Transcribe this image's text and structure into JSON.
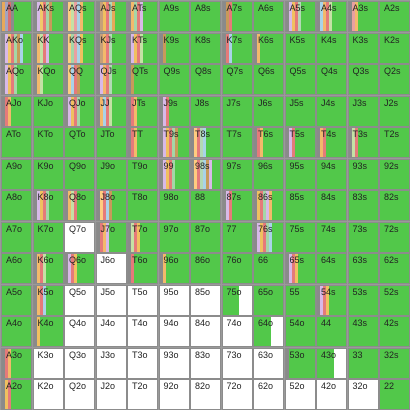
{
  "colors": {
    "raise": "#52c84a",
    "fold": "#ffffff",
    "text": "#222222",
    "border": "#8c8c8c"
  },
  "rows": [
    [
      {
        "hand": "AA",
        "green": 0.72,
        "stripes": [
          "#e7a95a",
          "#a3a3c0",
          "#d76f6f",
          "#8c8c8c"
        ]
      },
      {
        "hand": "AKs",
        "green": 0.6,
        "stripes": [
          "#8a8a8a",
          "#d8b9e8",
          "#f3c86b",
          "#e57a7a",
          "#a5d6a7",
          "#c79a5b"
        ]
      },
      {
        "hand": "AQs",
        "green": 0.62,
        "stripes": [
          "#8a8a8a",
          "#ffcc80",
          "#c5e1a5",
          "#e9a0a0",
          "#a9d3e8",
          "#f3b96b"
        ]
      },
      {
        "hand": "AJs",
        "green": 0.55,
        "stripes": [
          "#8a8a8a",
          "#c6a07a",
          "#f0c060",
          "#e57a7a",
          "#b3d9b5",
          "#e6a85a"
        ]
      },
      {
        "hand": "ATs",
        "green": 0.4,
        "stripes": [
          "#8a8a8a",
          "#f3b96b",
          "#a5d6a7",
          "#e57a7a",
          "#d8b9e8"
        ]
      },
      {
        "hand": "A9s",
        "green": 1,
        "stripes": []
      },
      {
        "hand": "A8s",
        "green": 1,
        "stripes": []
      },
      {
        "hand": "A7s",
        "green": 0.75,
        "stripes": [
          "#8a8a8a",
          "#c79a5b",
          "#e57a7a"
        ]
      },
      {
        "hand": "A6s",
        "green": 1,
        "stripes": []
      },
      {
        "hand": "A5s",
        "green": 0.55,
        "stripes": [
          "#8a8a8a",
          "#d8b9e8",
          "#f0c060",
          "#e57a7a",
          "#b3d9b5"
        ]
      },
      {
        "hand": "A4s",
        "green": 0.55,
        "stripes": [
          "#8a8a8a",
          "#a9d3e8",
          "#f3b96b",
          "#e57a7a",
          "#c5e1a5"
        ]
      },
      {
        "hand": "A3s",
        "green": 0.7,
        "stripes": [
          "#8a8a8a",
          "#e9a0a0",
          "#f3b96b"
        ]
      },
      {
        "hand": "A2s",
        "green": 1,
        "stripes": []
      }
    ],
    [
      {
        "hand": "AKo",
        "green": 0.4,
        "stripes": [
          "#8a8a8a",
          "#d8b9e8",
          "#f3c86b",
          "#e57a7a",
          "#a5d6a7",
          "#c79a5b",
          "#a9d3e8"
        ]
      },
      {
        "hand": "KK",
        "green": 0.6,
        "stripes": [
          "#8a8a8a",
          "#f3b96b",
          "#c5e1a5",
          "#e57a7a",
          "#d8b9e8"
        ]
      },
      {
        "hand": "KQs",
        "green": 0.45,
        "stripes": [
          "#8a8a8a",
          "#ffcc80",
          "#a5d6a7",
          "#e9a0a0",
          "#a9d3e8",
          "#f0c060"
        ]
      },
      {
        "hand": "KJs",
        "green": 0.5,
        "stripes": [
          "#8a8a8a",
          "#c6a07a",
          "#f3b96b",
          "#e57a7a",
          "#b3d9b5"
        ]
      },
      {
        "hand": "KTs",
        "green": 0.55,
        "stripes": [
          "#8a8a8a",
          "#d8b9e8",
          "#f0c060",
          "#e57a7a",
          "#c5e1a5"
        ]
      },
      {
        "hand": "K9s",
        "green": 0.8,
        "stripes": [
          "#8a8a8a",
          "#c79a5b"
        ]
      },
      {
        "hand": "K8s",
        "green": 1,
        "stripes": []
      },
      {
        "hand": "K7s",
        "green": 0.75,
        "stripes": [
          "#8a8a8a",
          "#e57a7a",
          "#a9d3e8"
        ]
      },
      {
        "hand": "K6s",
        "green": 0.8,
        "stripes": [
          "#8a8a8a",
          "#f3b96b"
        ]
      },
      {
        "hand": "K5s",
        "green": 1,
        "stripes": []
      },
      {
        "hand": "K4s",
        "green": 1,
        "stripes": []
      },
      {
        "hand": "K3s",
        "green": 1,
        "stripes": []
      },
      {
        "hand": "K2s",
        "green": 1,
        "stripes": []
      }
    ],
    [
      {
        "hand": "AQo",
        "green": 0.55,
        "stripes": [
          "#8a8a8a",
          "#d8b9e8",
          "#f0c060",
          "#e57a7a",
          "#a5d6a7"
        ]
      },
      {
        "hand": "KQo",
        "green": 0.65,
        "stripes": [
          "#8a8a8a",
          "#f3b96b",
          "#c5e1a5"
        ]
      },
      {
        "hand": "QQ",
        "green": 0.55,
        "stripes": [
          "#8a8a8a",
          "#ffcc80",
          "#a9d3e8",
          "#e57a7a",
          "#c79a5b"
        ]
      },
      {
        "hand": "QJs",
        "green": 0.55,
        "stripes": [
          "#8a8a8a",
          "#d8b9e8",
          "#f3b96b",
          "#e57a7a",
          "#b3d9b5"
        ]
      },
      {
        "hand": "QTs",
        "green": 0.8,
        "stripes": [
          "#8a8a8a",
          "#c79a5b"
        ]
      },
      {
        "hand": "Q9s",
        "green": 1,
        "stripes": []
      },
      {
        "hand": "Q8s",
        "green": 1,
        "stripes": []
      },
      {
        "hand": "Q7s",
        "green": 1,
        "stripes": []
      },
      {
        "hand": "Q6s",
        "green": 1,
        "stripes": []
      },
      {
        "hand": "Q5s",
        "green": 1,
        "stripes": []
      },
      {
        "hand": "Q4s",
        "green": 1,
        "stripes": []
      },
      {
        "hand": "Q3s",
        "green": 1,
        "stripes": []
      },
      {
        "hand": "Q2s",
        "green": 1,
        "stripes": []
      }
    ],
    [
      {
        "hand": "AJo",
        "green": 0.7,
        "stripes": [
          "#8a8a8a",
          "#e57a7a",
          "#f3b96b"
        ]
      },
      {
        "hand": "KJo",
        "green": 1,
        "stripes": []
      },
      {
        "hand": "QJo",
        "green": 0.5,
        "stripes": [
          "#8a8a8a",
          "#d8b9e8",
          "#f0c060",
          "#e57a7a",
          "#a5d6a7"
        ]
      },
      {
        "hand": "JJ",
        "green": 0.55,
        "stripes": [
          "#8a8a8a",
          "#f3b96b",
          "#a9d3e8",
          "#e57a7a",
          "#c5e1a5"
        ]
      },
      {
        "hand": "JTs",
        "green": 0.7,
        "stripes": [
          "#8a8a8a",
          "#e57a7a",
          "#f3b96b"
        ]
      },
      {
        "hand": "J9s",
        "green": 0.65,
        "stripes": [
          "#8a8a8a",
          "#d8b9e8",
          "#e57a7a"
        ]
      },
      {
        "hand": "J8s",
        "green": 1,
        "stripes": []
      },
      {
        "hand": "J7s",
        "green": 1,
        "stripes": []
      },
      {
        "hand": "J6s",
        "green": 1,
        "stripes": []
      },
      {
        "hand": "J5s",
        "green": 1,
        "stripes": []
      },
      {
        "hand": "J4s",
        "green": 1,
        "stripes": []
      },
      {
        "hand": "J3s",
        "green": 1,
        "stripes": []
      },
      {
        "hand": "J2s",
        "green": 1,
        "stripes": []
      }
    ],
    [
      {
        "hand": "ATo",
        "green": 1,
        "stripes": []
      },
      {
        "hand": "KTo",
        "green": 1,
        "stripes": []
      },
      {
        "hand": "QTo",
        "green": 1,
        "stripes": []
      },
      {
        "hand": "JTo",
        "green": 1,
        "stripes": []
      },
      {
        "hand": "TT",
        "green": 0.7,
        "stripes": [
          "#8a8a8a",
          "#e57a7a",
          "#f3b96b"
        ]
      },
      {
        "hand": "T9s",
        "green": 0.45,
        "stripes": [
          "#8a8a8a",
          "#d8b9e8",
          "#f0c060",
          "#e57a7a",
          "#a5d6a7",
          "#c79a5b"
        ]
      },
      {
        "hand": "T8s",
        "green": 0.55,
        "stripes": [
          "#8a8a8a",
          "#ffcc80",
          "#e57a7a",
          "#b3d9b5",
          "#a9d3e8"
        ]
      },
      {
        "hand": "T7s",
        "green": 1,
        "stripes": []
      },
      {
        "hand": "T6s",
        "green": 0.75,
        "stripes": [
          "#8a8a8a",
          "#e57a7a",
          "#f3b96b"
        ]
      },
      {
        "hand": "T5s",
        "green": 0.7,
        "stripes": [
          "#8a8a8a",
          "#d8b9e8",
          "#e57a7a"
        ]
      },
      {
        "hand": "T4s",
        "green": 0.7,
        "stripes": [
          "#8a8a8a",
          "#f3b96b",
          "#e57a7a"
        ]
      },
      {
        "hand": "T3s",
        "green": 0.7,
        "stripes": [
          "#8a8a8a",
          "#c5e1a5",
          "#e57a7a"
        ]
      },
      {
        "hand": "T2s",
        "green": 1,
        "stripes": []
      }
    ],
    [
      {
        "hand": "A9o",
        "green": 1,
        "stripes": []
      },
      {
        "hand": "K9o",
        "green": 1,
        "stripes": []
      },
      {
        "hand": "Q9o",
        "green": 1,
        "stripes": []
      },
      {
        "hand": "J9o",
        "green": 1,
        "stripes": []
      },
      {
        "hand": "T9o",
        "green": 1,
        "stripes": []
      },
      {
        "hand": "99",
        "green": 0.55,
        "stripes": [
          "#8a8a8a",
          "#d8b9e8",
          "#f0c060",
          "#e57a7a",
          "#a5d6a7"
        ]
      },
      {
        "hand": "98s",
        "green": 0.4,
        "stripes": [
          "#8a8a8a",
          "#ffcc80",
          "#e57a7a",
          "#b3d9b5",
          "#a9d3e8",
          "#c79a5b",
          "#d8b9e8"
        ]
      },
      {
        "hand": "97s",
        "green": 1,
        "stripes": []
      },
      {
        "hand": "96s",
        "green": 1,
        "stripes": []
      },
      {
        "hand": "95s",
        "green": 1,
        "stripes": []
      },
      {
        "hand": "94s",
        "green": 1,
        "stripes": []
      },
      {
        "hand": "93s",
        "green": 1,
        "stripes": []
      },
      {
        "hand": "92s",
        "green": 1,
        "stripes": []
      }
    ],
    [
      {
        "hand": "A8o",
        "green": 1,
        "stripes": []
      },
      {
        "hand": "K8o",
        "green": 0.55,
        "stripes": [
          "#8a8a8a",
          "#d8b9e8",
          "#f0c060",
          "#e57a7a",
          "#a5d6a7"
        ]
      },
      {
        "hand": "Q8o",
        "green": 0.6,
        "stripes": [
          "#8a8a8a",
          "#f3b96b",
          "#c5e1a5",
          "#e57a7a"
        ]
      },
      {
        "hand": "J8o",
        "green": 0.55,
        "stripes": [
          "#8a8a8a",
          "#ffcc80",
          "#e57a7a",
          "#a9d3e8",
          "#c79a5b"
        ]
      },
      {
        "hand": "T8o",
        "green": 1,
        "stripes": []
      },
      {
        "hand": "98o",
        "green": 1,
        "stripes": []
      },
      {
        "hand": "88",
        "green": 1,
        "stripes": []
      },
      {
        "hand": "87s",
        "green": 0.7,
        "stripes": [
          "#8a8a8a",
          "#d8b9e8",
          "#e57a7a"
        ]
      },
      {
        "hand": "86s",
        "green": 0.45,
        "stripes": [
          "#8a8a8a",
          "#f0c060",
          "#e57a7a",
          "#a5d6a7",
          "#d8b9e8",
          "#f3b96b"
        ]
      },
      {
        "hand": "85s",
        "green": 1,
        "stripes": []
      },
      {
        "hand": "84s",
        "green": 1,
        "stripes": []
      },
      {
        "hand": "83s",
        "green": 1,
        "stripes": []
      },
      {
        "hand": "82s",
        "green": 1,
        "stripes": []
      }
    ],
    [
      {
        "hand": "A7o",
        "green": 1,
        "stripes": []
      },
      {
        "hand": "K7o",
        "green": 1,
        "stripes": []
      },
      {
        "hand": "Q7o",
        "green": 0,
        "stripes": []
      },
      {
        "hand": "J7o",
        "green": 0.3,
        "stripes": [
          "#8a8a8a",
          "#e57a7a",
          "#f3b96b",
          "#d8b9e8"
        ]
      },
      {
        "hand": "T7o",
        "green": 0.5,
        "stripes": [
          "#8a8a8a",
          "#c5e1a5",
          "#e57a7a",
          "#f0c060"
        ]
      },
      {
        "hand": "97o",
        "green": 1,
        "stripes": []
      },
      {
        "hand": "87o",
        "green": 1,
        "stripes": []
      },
      {
        "hand": "77",
        "green": 1,
        "stripes": []
      },
      {
        "hand": "76s",
        "green": 0.4,
        "stripes": [
          "#8a8a8a",
          "#d8b9e8",
          "#f0c060",
          "#e57a7a",
          "#a5d6a7",
          "#a9d3e8"
        ]
      },
      {
        "hand": "75s",
        "green": 1,
        "stripes": []
      },
      {
        "hand": "74s",
        "green": 1,
        "stripes": []
      },
      {
        "hand": "73s",
        "green": 1,
        "stripes": []
      },
      {
        "hand": "72s",
        "green": 1,
        "stripes": []
      }
    ],
    [
      {
        "hand": "A6o",
        "green": 1,
        "stripes": []
      },
      {
        "hand": "K6o",
        "green": 0.55,
        "stripes": [
          "#8a8a8a",
          "#f3b96b",
          "#e57a7a",
          "#c5e1a5"
        ]
      },
      {
        "hand": "Q6o",
        "green": 0.4,
        "stripes": [
          "#8a8a8a",
          "#d8b9e8",
          "#e57a7a",
          "#f0c060"
        ]
      },
      {
        "hand": "J6o",
        "green": 0,
        "stripes": []
      },
      {
        "hand": "T6o",
        "green": 0.2,
        "stripes": [
          "#8a8a8a",
          "#e57a7a"
        ]
      },
      {
        "hand": "96o",
        "green": 0.25,
        "stripes": [
          "#8a8a8a",
          "#f3b96b"
        ]
      },
      {
        "hand": "86o",
        "green": 1,
        "stripes": []
      },
      {
        "hand": "76o",
        "green": 1,
        "stripes": []
      },
      {
        "hand": "66",
        "green": 1,
        "stripes": []
      },
      {
        "hand": "65s",
        "green": 0.55,
        "stripes": [
          "#8a8a8a",
          "#d8b9e8",
          "#e57a7a",
          "#f0c060"
        ]
      },
      {
        "hand": "64s",
        "green": 1,
        "stripes": []
      },
      {
        "hand": "63s",
        "green": 1,
        "stripes": []
      },
      {
        "hand": "62s",
        "green": 1,
        "stripes": []
      }
    ],
    [
      {
        "hand": "A5o",
        "green": 1,
        "stripes": []
      },
      {
        "hand": "K5o",
        "green": 0.45,
        "stripes": [
          "#8a8a8a",
          "#f3b96b",
          "#e57a7a",
          "#a9d3e8"
        ]
      },
      {
        "hand": "Q5o",
        "green": 0,
        "stripes": []
      },
      {
        "hand": "J5o",
        "green": 0,
        "stripes": []
      },
      {
        "hand": "T5o",
        "green": 0,
        "stripes": []
      },
      {
        "hand": "95o",
        "green": 0,
        "stripes": []
      },
      {
        "hand": "85o",
        "green": 0,
        "stripes": []
      },
      {
        "hand": "75o",
        "green": 0.55,
        "stripes": []
      },
      {
        "hand": "65o",
        "green": 1,
        "stripes": []
      },
      {
        "hand": "55",
        "green": 1,
        "stripes": []
      },
      {
        "hand": "54s",
        "green": 0.55,
        "stripes": [
          "#8a8a8a",
          "#d8b9e8",
          "#e57a7a",
          "#f0c060"
        ]
      },
      {
        "hand": "53s",
        "green": 1,
        "stripes": []
      },
      {
        "hand": "52s",
        "green": 1,
        "stripes": []
      }
    ],
    [
      {
        "hand": "A4o",
        "green": 1,
        "stripes": []
      },
      {
        "hand": "K4o",
        "green": 0.3,
        "stripes": [
          "#8a8a8a",
          "#f0c060"
        ]
      },
      {
        "hand": "Q4o",
        "green": 0,
        "stripes": []
      },
      {
        "hand": "J4o",
        "green": 0,
        "stripes": []
      },
      {
        "hand": "T4o",
        "green": 0,
        "stripes": []
      },
      {
        "hand": "94o",
        "green": 0,
        "stripes": []
      },
      {
        "hand": "84o",
        "green": 0,
        "stripes": []
      },
      {
        "hand": "74o",
        "green": 0,
        "stripes": []
      },
      {
        "hand": "64o",
        "green": 0.6,
        "stripes": []
      },
      {
        "hand": "54o",
        "green": 1,
        "stripes": []
      },
      {
        "hand": "44",
        "green": 1,
        "stripes": []
      },
      {
        "hand": "43s",
        "green": 1,
        "stripes": []
      },
      {
        "hand": "42s",
        "green": 1,
        "stripes": []
      }
    ],
    [
      {
        "hand": "A3o",
        "green": 0.6,
        "stripes": [
          "#8a8a8a",
          "#e57a7a",
          "#f3b96b"
        ]
      },
      {
        "hand": "K3o",
        "green": 0,
        "stripes": []
      },
      {
        "hand": "Q3o",
        "green": 0,
        "stripes": []
      },
      {
        "hand": "J3o",
        "green": 0,
        "stripes": []
      },
      {
        "hand": "T3o",
        "green": 0,
        "stripes": []
      },
      {
        "hand": "93o",
        "green": 0,
        "stripes": []
      },
      {
        "hand": "83o",
        "green": 0,
        "stripes": []
      },
      {
        "hand": "73o",
        "green": 0,
        "stripes": []
      },
      {
        "hand": "63o",
        "green": 0,
        "stripes": []
      },
      {
        "hand": "53o",
        "green": 0.6,
        "stripes": [
          "#8a8a8a"
        ]
      },
      {
        "hand": "43o",
        "green": 0.6,
        "stripes": []
      },
      {
        "hand": "33",
        "green": 1,
        "stripes": []
      },
      {
        "hand": "32s",
        "green": 1,
        "stripes": []
      }
    ],
    [
      {
        "hand": "A2o",
        "green": 0.55,
        "stripes": [
          "#8a8a8a",
          "#f0c060",
          "#e57a7a"
        ]
      },
      {
        "hand": "K2o",
        "green": 0,
        "stripes": []
      },
      {
        "hand": "Q2o",
        "green": 0,
        "stripes": []
      },
      {
        "hand": "J2o",
        "green": 0,
        "stripes": []
      },
      {
        "hand": "T2o",
        "green": 0,
        "stripes": []
      },
      {
        "hand": "92o",
        "green": 0,
        "stripes": []
      },
      {
        "hand": "82o",
        "green": 0,
        "stripes": []
      },
      {
        "hand": "72o",
        "green": 0,
        "stripes": []
      },
      {
        "hand": "62o",
        "green": 0,
        "stripes": []
      },
      {
        "hand": "52o",
        "green": 0,
        "stripes": []
      },
      {
        "hand": "42o",
        "green": 0,
        "stripes": []
      },
      {
        "hand": "32o",
        "green": 0,
        "stripes": []
      },
      {
        "hand": "22",
        "green": 1,
        "stripes": []
      }
    ]
  ]
}
